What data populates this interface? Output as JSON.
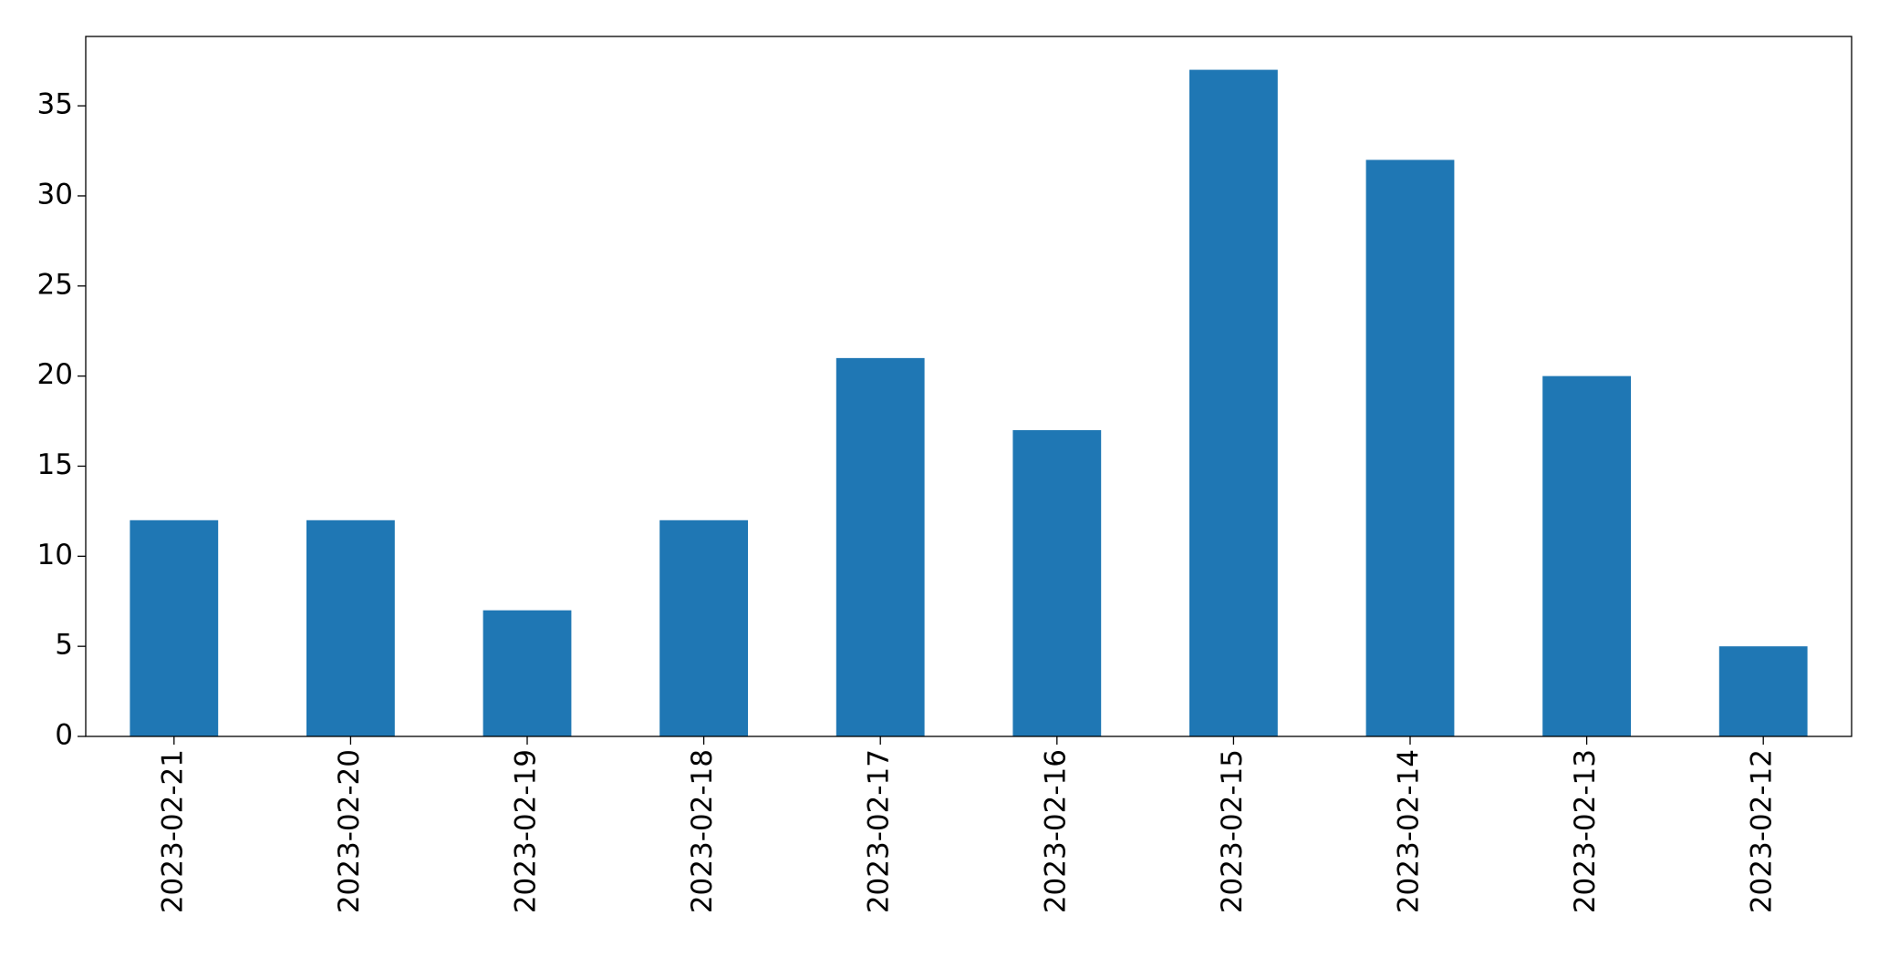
{
  "chart_data": {
    "type": "bar",
    "categories": [
      "2023-02-21",
      "2023-02-20",
      "2023-02-19",
      "2023-02-18",
      "2023-02-17",
      "2023-02-16",
      "2023-02-15",
      "2023-02-14",
      "2023-02-13",
      "2023-02-12"
    ],
    "values": [
      12,
      12,
      7,
      12,
      21,
      17,
      37,
      32,
      20,
      5
    ],
    "color": "#1f77b4",
    "ylim": [
      0,
      38.85
    ],
    "yticks": [
      0,
      5,
      10,
      15,
      20,
      25,
      30,
      35
    ],
    "grid": false
  }
}
